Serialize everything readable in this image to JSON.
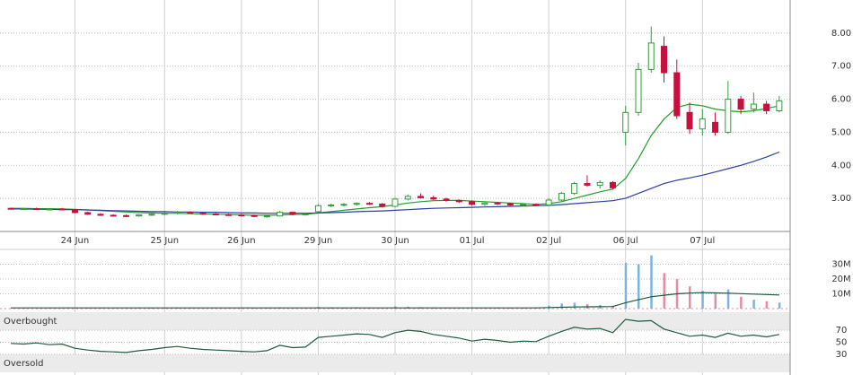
{
  "chart_data": [
    {
      "type": "candlestick",
      "categories": [
        null,
        null,
        null,
        null,
        null,
        "24 Jun",
        null,
        null,
        null,
        null,
        null,
        null,
        "25 Jun",
        null,
        null,
        null,
        null,
        null,
        "26 Jun",
        null,
        null,
        null,
        null,
        null,
        "29 Jun",
        null,
        null,
        null,
        null,
        null,
        "30 Jun",
        null,
        null,
        null,
        null,
        null,
        "01 Jul",
        null,
        null,
        null,
        null,
        null,
        "02 Jul",
        null,
        null,
        null,
        null,
        null,
        "06 Jul",
        null,
        null,
        null,
        null,
        null,
        "07 Jul",
        null,
        null,
        null,
        null,
        null,
        null
      ],
      "open": [
        2.7,
        2.68,
        2.69,
        2.67,
        2.68,
        2.66,
        2.57,
        2.52,
        2.49,
        2.48,
        2.47,
        2.5,
        2.52,
        2.55,
        2.58,
        2.55,
        2.53,
        2.51,
        2.5,
        2.48,
        2.46,
        2.47,
        2.58,
        2.52,
        2.6,
        2.78,
        2.8,
        2.82,
        2.85,
        2.83,
        2.76,
        2.98,
        3.06,
        3.02,
        2.98,
        2.94,
        2.9,
        2.82,
        2.86,
        2.84,
        2.8,
        2.82,
        2.8,
        2.95,
        3.15,
        3.45,
        3.4,
        3.48,
        5.0,
        5.6,
        6.9,
        7.6,
        6.8,
        5.6,
        5.1,
        5.3,
        5.0,
        6.0,
        5.7,
        5.85,
        5.65
      ],
      "high": [
        2.72,
        2.71,
        2.72,
        2.7,
        2.71,
        2.68,
        2.6,
        2.55,
        2.52,
        2.51,
        2.52,
        2.54,
        2.58,
        2.62,
        2.61,
        2.58,
        2.56,
        2.54,
        2.53,
        2.51,
        2.5,
        2.62,
        2.6,
        2.55,
        2.82,
        2.84,
        2.86,
        2.88,
        2.89,
        2.86,
        3.02,
        3.12,
        3.15,
        3.08,
        3.02,
        2.97,
        2.94,
        2.88,
        2.9,
        2.87,
        2.84,
        2.85,
        3.0,
        3.2,
        3.5,
        3.7,
        3.55,
        3.52,
        5.8,
        7.1,
        8.2,
        7.9,
        7.2,
        5.9,
        5.7,
        5.6,
        6.55,
        6.1,
        6.2,
        5.95,
        6.1
      ],
      "low": [
        2.66,
        2.65,
        2.66,
        2.64,
        2.65,
        2.55,
        2.5,
        2.47,
        2.45,
        2.44,
        2.45,
        2.47,
        2.49,
        2.52,
        2.53,
        2.5,
        2.49,
        2.47,
        2.45,
        2.43,
        2.42,
        2.45,
        2.49,
        2.48,
        2.58,
        2.74,
        2.76,
        2.78,
        2.8,
        2.72,
        2.74,
        2.94,
        3.0,
        2.95,
        2.9,
        2.86,
        2.78,
        2.78,
        2.8,
        2.78,
        2.76,
        2.78,
        2.78,
        2.92,
        3.1,
        3.35,
        3.3,
        3.28,
        4.6,
        5.5,
        6.8,
        6.5,
        5.4,
        4.95,
        4.9,
        4.9,
        4.95,
        5.55,
        5.6,
        5.55,
        5.6
      ],
      "close": [
        2.68,
        2.69,
        2.67,
        2.68,
        2.66,
        2.57,
        2.52,
        2.49,
        2.48,
        2.47,
        2.5,
        2.52,
        2.55,
        2.58,
        2.55,
        2.53,
        2.51,
        2.5,
        2.48,
        2.46,
        2.47,
        2.58,
        2.52,
        2.53,
        2.78,
        2.8,
        2.82,
        2.85,
        2.83,
        2.76,
        2.98,
        3.06,
        3.02,
        2.98,
        2.94,
        2.9,
        2.82,
        2.86,
        2.84,
        2.8,
        2.82,
        2.8,
        2.95,
        3.15,
        3.45,
        3.4,
        3.48,
        3.32,
        5.6,
        6.9,
        7.7,
        6.8,
        5.5,
        5.1,
        5.4,
        5.0,
        6.0,
        5.7,
        5.85,
        5.65,
        5.95
      ],
      "up_color": "#2e9e3a",
      "down_color": "#c8103e",
      "overlays": [
        {
          "color": "#22a02a",
          "values": [
            2.7,
            2.7,
            2.69,
            2.69,
            2.68,
            2.67,
            2.65,
            2.63,
            2.61,
            2.59,
            2.57,
            2.56,
            2.55,
            2.55,
            2.54,
            2.53,
            2.52,
            2.51,
            2.5,
            2.49,
            2.49,
            2.5,
            2.51,
            2.52,
            2.56,
            2.6,
            2.64,
            2.68,
            2.72,
            2.75,
            2.8,
            2.86,
            2.9,
            2.93,
            2.94,
            2.94,
            2.92,
            2.9,
            2.88,
            2.86,
            2.84,
            2.82,
            2.84,
            2.9,
            3.0,
            3.1,
            3.2,
            3.28,
            3.6,
            4.2,
            4.9,
            5.4,
            5.75,
            5.85,
            5.8,
            5.7,
            5.65,
            5.62,
            5.65,
            5.72,
            5.8
          ]
        },
        {
          "color": "#2b3fa0",
          "values": [
            2.68,
            2.68,
            2.67,
            2.67,
            2.66,
            2.66,
            2.65,
            2.64,
            2.63,
            2.62,
            2.61,
            2.6,
            2.6,
            2.59,
            2.59,
            2.58,
            2.58,
            2.57,
            2.56,
            2.56,
            2.55,
            2.55,
            2.55,
            2.55,
            2.56,
            2.57,
            2.58,
            2.6,
            2.61,
            2.62,
            2.64,
            2.66,
            2.68,
            2.7,
            2.71,
            2.72,
            2.73,
            2.74,
            2.75,
            2.76,
            2.77,
            2.78,
            2.79,
            2.81,
            2.84,
            2.87,
            2.9,
            2.93,
            3.0,
            3.15,
            3.3,
            3.45,
            3.55,
            3.62,
            3.7,
            3.8,
            3.9,
            4.0,
            4.12,
            4.25,
            4.4
          ]
        }
      ],
      "ylim": [
        2,
        9
      ],
      "yticks": [
        {
          "value": 3,
          "label": "3.00"
        },
        {
          "value": 4,
          "label": "4.00"
        },
        {
          "value": 5,
          "label": "5.00"
        },
        {
          "value": 6,
          "label": "6.00"
        },
        {
          "value": 7,
          "label": "7.00"
        },
        {
          "value": 8,
          "label": "8.00"
        }
      ],
      "grid": true
    },
    {
      "type": "bar",
      "values": [
        400000,
        300000,
        200000,
        300000,
        200000,
        600000,
        500000,
        400000,
        300000,
        300000,
        400000,
        300000,
        500000,
        600000,
        400000,
        300000,
        300000,
        200000,
        400000,
        300000,
        300000,
        800000,
        500000,
        300000,
        1200000,
        800000,
        700000,
        900000,
        600000,
        500000,
        1500000,
        1300000,
        1000000,
        800000,
        700000,
        600000,
        800000,
        600000,
        500000,
        500000,
        400000,
        400000,
        2000000,
        3500000,
        4000000,
        3000000,
        2500000,
        2000000,
        31000000,
        30000000,
        36000000,
        24000000,
        20000000,
        15000000,
        12000000,
        10000000,
        13000000,
        8000000,
        6000000,
        5000000,
        4000000
      ],
      "up_color": "#7fb2dd",
      "down_color": "#e98aa6",
      "ma": {
        "color": "#1f5a3a",
        "values": [
          500000,
          500000,
          500000,
          500000,
          500000,
          500000,
          500000,
          500000,
          500000,
          500000,
          500000,
          500000,
          500000,
          500000,
          500000,
          500000,
          500000,
          500000,
          500000,
          500000,
          500000,
          500000,
          500000,
          500000,
          500000,
          500000,
          500000,
          500000,
          500000,
          500000,
          500000,
          500000,
          500000,
          500000,
          500000,
          500000,
          500000,
          500000,
          500000,
          500000,
          500000,
          500000,
          700000,
          900000,
          1100000,
          1200000,
          1300000,
          1400000,
          4000000,
          6000000,
          8000000,
          9000000,
          10000000,
          10500000,
          10800000,
          10600000,
          10400000,
          10100000,
          9800000,
          9500000,
          9200000
        ]
      },
      "ylim": [
        0,
        40000000
      ],
      "yticks": [
        {
          "value": 10000000,
          "label": "10M"
        },
        {
          "value": 20000000,
          "label": "20M"
        },
        {
          "value": 30000000,
          "label": "30M"
        }
      ],
      "grid": true
    },
    {
      "type": "line",
      "values": [
        48,
        47,
        49,
        46,
        47,
        40,
        37,
        35,
        34,
        33,
        36,
        38,
        41,
        43,
        40,
        38,
        37,
        36,
        35,
        34,
        36,
        45,
        41,
        42,
        58,
        60,
        62,
        64,
        63,
        58,
        66,
        70,
        68,
        63,
        60,
        57,
        52,
        55,
        53,
        50,
        52,
        51,
        60,
        68,
        75,
        72,
        73,
        66,
        88,
        85,
        86,
        72,
        66,
        60,
        62,
        58,
        65,
        60,
        62,
        59,
        63
      ],
      "color": "#1f5a3a",
      "bands": [
        {
          "label": "Overbought",
          "range": [
            70,
            100
          ]
        },
        {
          "label": "Oversold",
          "range": [
            0,
            30
          ]
        }
      ],
      "ylim": [
        0,
        100
      ],
      "yticks": [
        30,
        50,
        70
      ],
      "grid": true
    }
  ]
}
